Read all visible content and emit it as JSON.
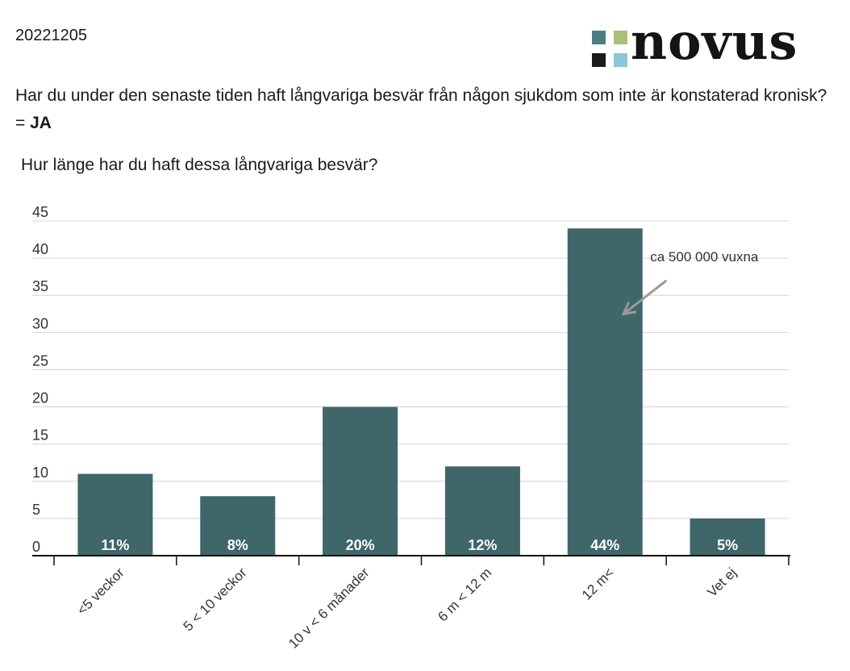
{
  "header": {
    "date": "20221205",
    "logo_text": "novus",
    "logo_colors": [
      "#4d7f82",
      "#a9bf7a",
      "#1a1a1a",
      "#8ec6d6"
    ],
    "question": "Har du under den senaste tiden haft långvariga besvär från någon sjukdom som inte är konstaterad kronisk? = ",
    "question_emphasis": "JA"
  },
  "chart_data": {
    "type": "bar",
    "title": "Hur länge har du haft dessa långvariga besvär?",
    "xlabel": "",
    "ylabel": "",
    "categories": [
      "<5 veckor",
      "5 < 10 veckor",
      "10 v < 6 månader",
      "6 m < 12 m",
      "12 m<",
      "Vet ej"
    ],
    "values": [
      11,
      8,
      20,
      12,
      44,
      5
    ],
    "data_labels": [
      "11%",
      "8%",
      "20%",
      "12%",
      "44%",
      "5%"
    ],
    "ylim": [
      0,
      45
    ],
    "yticks": [
      0,
      5,
      10,
      15,
      20,
      25,
      30,
      35,
      40,
      45
    ],
    "grid": true,
    "bar_color": "#3f6668",
    "annotation": {
      "text": "ca 500 000 vuxna",
      "category": "12 m<"
    }
  }
}
